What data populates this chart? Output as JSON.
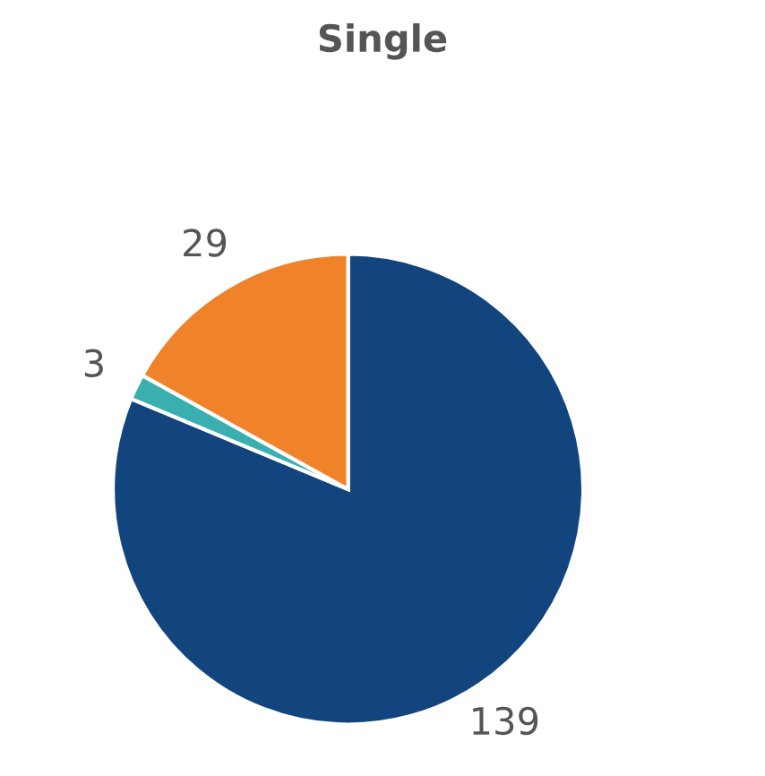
{
  "chart_data": {
    "type": "pie",
    "title": "Single",
    "categories": [
      null,
      null,
      null
    ],
    "values": [
      139,
      3,
      29
    ],
    "colors": [
      "#12457d",
      "#3aafb0",
      "#f0832a"
    ],
    "data_labels": true
  }
}
